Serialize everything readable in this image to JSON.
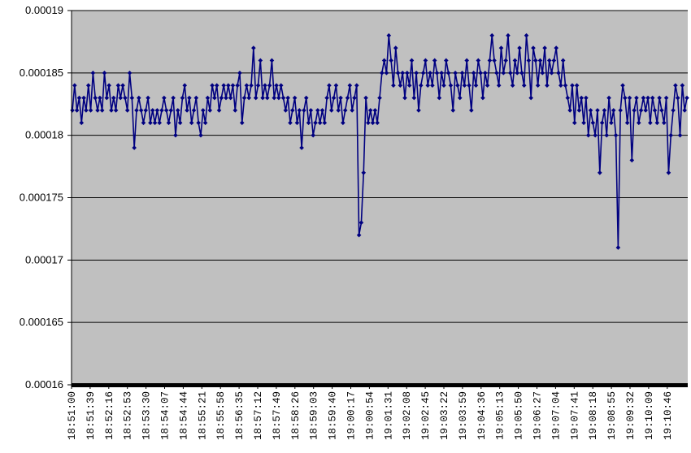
{
  "colors": {
    "plot_background": "#c0c0c0",
    "series": "#000080",
    "gridline": "#000000",
    "axis": "#000000",
    "page_background": "#ffffff"
  },
  "chart_data": {
    "type": "line",
    "title": "",
    "xlabel": "",
    "ylabel": "",
    "ylim": [
      0.00016,
      0.00019
    ],
    "y_ticks": [
      "0.00016",
      "0.000165",
      "0.00017",
      "0.000175",
      "0.00018",
      "0.000185",
      "0.00019"
    ],
    "x_tick_labels": [
      "18:51:00",
      "18:51:39",
      "18:52:16",
      "18:52:53",
      "18:53:30",
      "18:54:07",
      "18:54:44",
      "18:55:21",
      "18:55:58",
      "18:56:35",
      "18:57:12",
      "18:57:49",
      "18:58:26",
      "18:59:03",
      "18:59:40",
      "19:00:17",
      "19:00:54",
      "19:01:31",
      "19:02:08",
      "19:02:45",
      "19:03:22",
      "19:03:59",
      "19:04:36",
      "19:05:13",
      "19:05:50",
      "19:06:27",
      "19:07:04",
      "19:07:41",
      "19:08:18",
      "19:08:55",
      "19:09:32",
      "19:10:09",
      "19:10:46"
    ],
    "grid": true,
    "legend": "none",
    "marker": "diamond",
    "x_start": "18:51:00",
    "x_end": "19:11:10",
    "series": [
      {
        "values": [
          0.000182,
          0.000184,
          0.000182,
          0.000183,
          0.000181,
          0.000183,
          0.000182,
          0.000184,
          0.000182,
          0.000185,
          0.000183,
          0.000182,
          0.000183,
          0.000182,
          0.000185,
          0.000183,
          0.000184,
          0.000182,
          0.000183,
          0.000182,
          0.000184,
          0.000183,
          0.000184,
          0.000183,
          0.000182,
          0.000185,
          0.000183,
          0.000179,
          0.000182,
          0.000183,
          0.000182,
          0.000181,
          0.000182,
          0.000183,
          0.000181,
          0.000182,
          0.000181,
          0.000182,
          0.000181,
          0.000182,
          0.000183,
          0.000182,
          0.000181,
          0.000182,
          0.000183,
          0.00018,
          0.000182,
          0.000181,
          0.000183,
          0.000184,
          0.000182,
          0.000183,
          0.000181,
          0.000182,
          0.000183,
          0.000181,
          0.00018,
          0.000182,
          0.000181,
          0.000183,
          0.000182,
          0.000184,
          0.000183,
          0.000184,
          0.000182,
          0.000183,
          0.000184,
          0.000183,
          0.000184,
          0.000183,
          0.000184,
          0.000182,
          0.000184,
          0.000185,
          0.000181,
          0.000183,
          0.000184,
          0.000183,
          0.000184,
          0.000187,
          0.000183,
          0.000184,
          0.000186,
          0.000183,
          0.000184,
          0.000183,
          0.000184,
          0.000186,
          0.000183,
          0.000184,
          0.000183,
          0.000184,
          0.000183,
          0.000182,
          0.000183,
          0.000181,
          0.000182,
          0.000183,
          0.000181,
          0.000182,
          0.000179,
          0.000182,
          0.000183,
          0.000181,
          0.000182,
          0.00018,
          0.000181,
          0.000182,
          0.000181,
          0.000182,
          0.000181,
          0.000183,
          0.000184,
          0.000182,
          0.000183,
          0.000184,
          0.000182,
          0.000183,
          0.000181,
          0.000182,
          0.000183,
          0.000184,
          0.000182,
          0.000183,
          0.000184,
          0.000172,
          0.000173,
          0.000177,
          0.000183,
          0.000181,
          0.000182,
          0.000181,
          0.000182,
          0.000181,
          0.000183,
          0.000185,
          0.000186,
          0.000185,
          0.000188,
          0.000186,
          0.000184,
          0.000187,
          0.000185,
          0.000184,
          0.000185,
          0.000183,
          0.000185,
          0.000184,
          0.000186,
          0.000183,
          0.000185,
          0.000182,
          0.000184,
          0.000185,
          0.000186,
          0.000184,
          0.000185,
          0.000184,
          0.000186,
          0.000185,
          0.000183,
          0.000185,
          0.000184,
          0.000186,
          0.000185,
          0.000184,
          0.000182,
          0.000185,
          0.000184,
          0.000183,
          0.000185,
          0.000184,
          0.000186,
          0.000184,
          0.000182,
          0.000185,
          0.000184,
          0.000186,
          0.000185,
          0.000183,
          0.000185,
          0.000184,
          0.000186,
          0.000188,
          0.000186,
          0.000185,
          0.000184,
          0.000187,
          0.000185,
          0.000186,
          0.000188,
          0.000185,
          0.000184,
          0.000186,
          0.000185,
          0.000187,
          0.000185,
          0.000184,
          0.000188,
          0.000186,
          0.000183,
          0.000187,
          0.000186,
          0.000184,
          0.000186,
          0.000185,
          0.000187,
          0.000184,
          0.000186,
          0.000185,
          0.000186,
          0.000187,
          0.000185,
          0.000184,
          0.000186,
          0.000184,
          0.000183,
          0.000182,
          0.000184,
          0.000181,
          0.000184,
          0.000182,
          0.000183,
          0.000181,
          0.000183,
          0.00018,
          0.000182,
          0.000181,
          0.00018,
          0.000182,
          0.000177,
          0.000181,
          0.000182,
          0.00018,
          0.000183,
          0.000181,
          0.000182,
          0.00018,
          0.000171,
          0.000182,
          0.000184,
          0.000183,
          0.000181,
          0.000183,
          0.000178,
          0.000182,
          0.000183,
          0.000181,
          0.000182,
          0.000183,
          0.000182,
          0.000183,
          0.000181,
          0.000183,
          0.000182,
          0.000181,
          0.000183,
          0.000182,
          0.000181,
          0.000183,
          0.000177,
          0.00018,
          0.000182,
          0.000184,
          0.000183,
          0.00018,
          0.000184,
          0.000182,
          0.000183
        ]
      }
    ]
  }
}
